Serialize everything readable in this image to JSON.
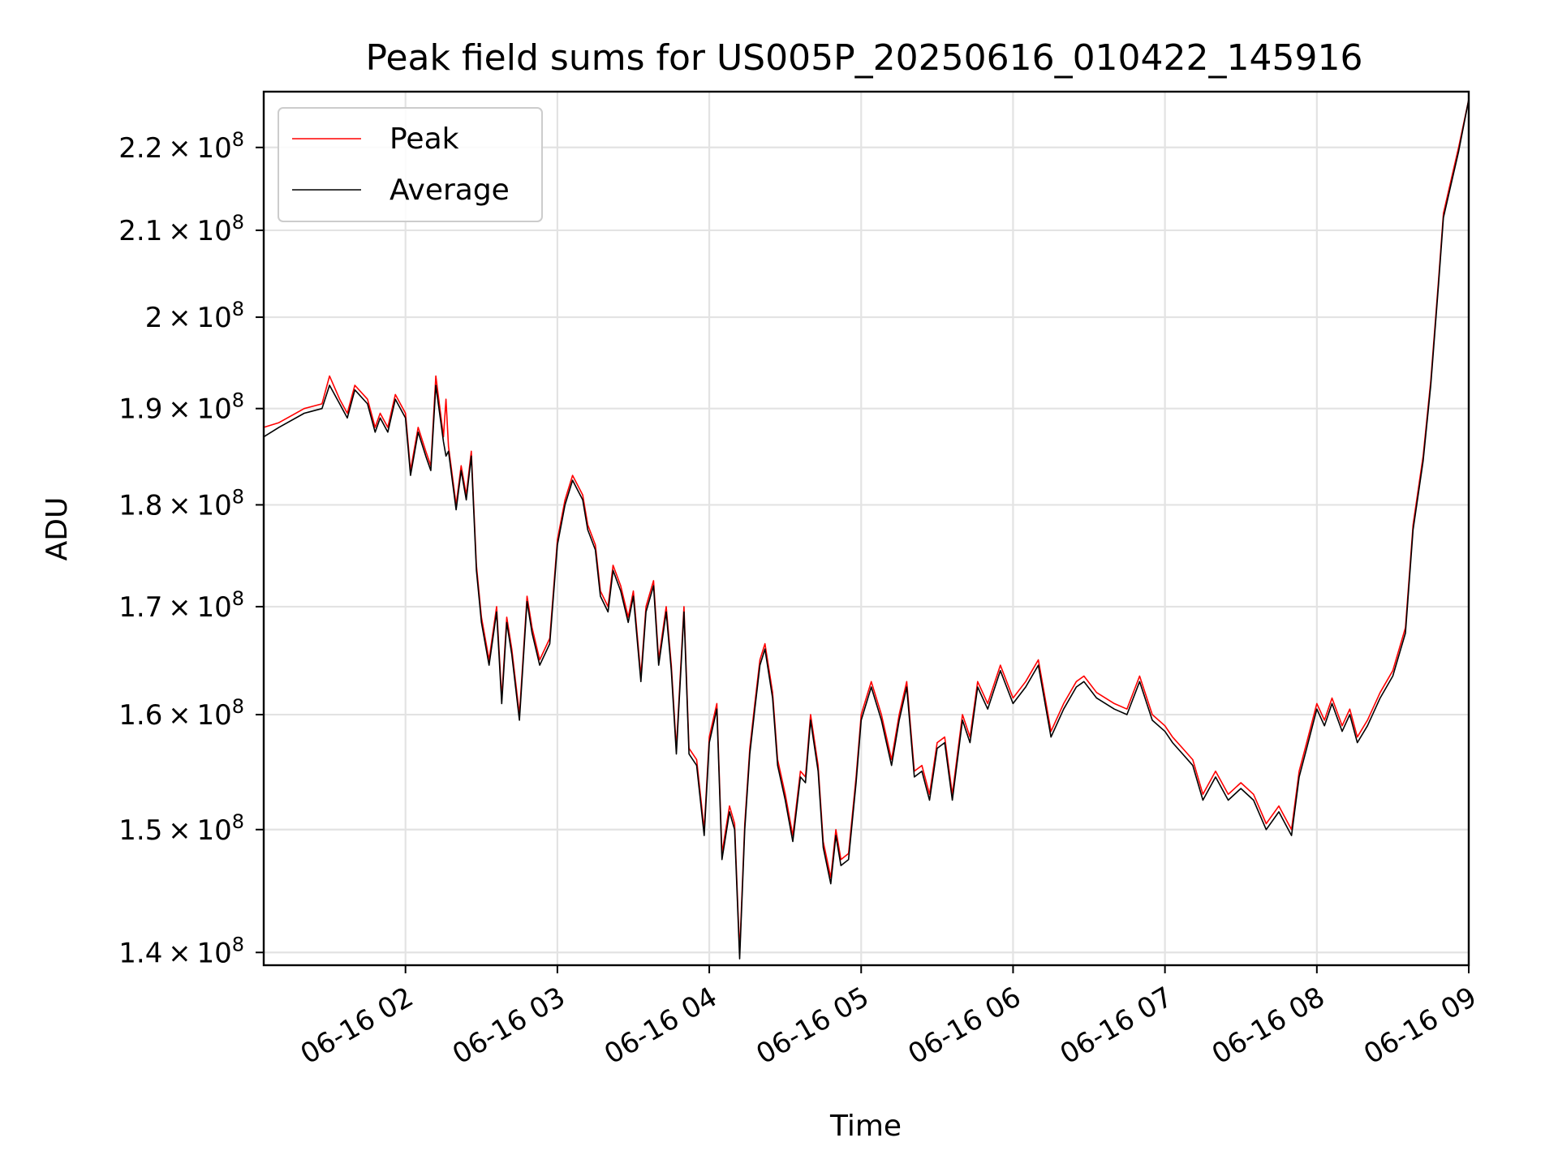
{
  "chart_data": {
    "type": "line",
    "title": "Peak field sums for US005P_20250616_010422_145916",
    "xlabel": "Time",
    "ylabel": "ADU",
    "y_scale": "log",
    "xlim": [
      "2025-06-16 01:04",
      "2025-06-16 09:00"
    ],
    "ylim": [
      139000000,
      227000000
    ],
    "grid": true,
    "legend_position": "top-left",
    "x_ticks": [
      {
        "value": "2025-06-16 02:00",
        "label": "06-16 02"
      },
      {
        "value": "2025-06-16 03:00",
        "label": "06-16 03"
      },
      {
        "value": "2025-06-16 04:00",
        "label": "06-16 04"
      },
      {
        "value": "2025-06-16 05:00",
        "label": "06-16 05"
      },
      {
        "value": "2025-06-16 06:00",
        "label": "06-16 06"
      },
      {
        "value": "2025-06-16 07:00",
        "label": "06-16 07"
      },
      {
        "value": "2025-06-16 08:00",
        "label": "06-16 08"
      },
      {
        "value": "2025-06-16 09:00",
        "label": "06-16 09"
      }
    ],
    "y_ticks": [
      {
        "value": 140000000,
        "mantissa": "1.4",
        "base": "10",
        "exp": "8"
      },
      {
        "value": 150000000,
        "mantissa": "1.5",
        "base": "10",
        "exp": "8"
      },
      {
        "value": 160000000,
        "mantissa": "1.6",
        "base": "10",
        "exp": "8"
      },
      {
        "value": 170000000,
        "mantissa": "1.7",
        "base": "10",
        "exp": "8"
      },
      {
        "value": 180000000,
        "mantissa": "1.8",
        "base": "10",
        "exp": "8"
      },
      {
        "value": 190000000,
        "mantissa": "1.9",
        "base": "10",
        "exp": "8"
      },
      {
        "value": 200000000,
        "mantissa": "2",
        "base": "10",
        "exp": "8"
      },
      {
        "value": 210000000,
        "mantissa": "2.1",
        "base": "10",
        "exp": "8"
      },
      {
        "value": 220000000,
        "mantissa": "2.2",
        "base": "10",
        "exp": "8"
      }
    ],
    "x": [
      "2025-06-16 01:04",
      "2025-06-16 01:10",
      "2025-06-16 01:20",
      "2025-06-16 01:27",
      "2025-06-16 01:30",
      "2025-06-16 01:34",
      "2025-06-16 01:37",
      "2025-06-16 01:40",
      "2025-06-16 01:45",
      "2025-06-16 01:48",
      "2025-06-16 01:50",
      "2025-06-16 01:53",
      "2025-06-16 01:56",
      "2025-06-16 02:00",
      "2025-06-16 02:02",
      "2025-06-16 02:05",
      "2025-06-16 02:08",
      "2025-06-16 02:10",
      "2025-06-16 02:12",
      "2025-06-16 02:15",
      "2025-06-16 02:16",
      "2025-06-16 02:17",
      "2025-06-16 02:20",
      "2025-06-16 02:22",
      "2025-06-16 02:24",
      "2025-06-16 02:26",
      "2025-06-16 02:28",
      "2025-06-16 02:30",
      "2025-06-16 02:33",
      "2025-06-16 02:36",
      "2025-06-16 02:38",
      "2025-06-16 02:40",
      "2025-06-16 02:42",
      "2025-06-16 02:45",
      "2025-06-16 02:48",
      "2025-06-16 02:50",
      "2025-06-16 02:53",
      "2025-06-16 02:57",
      "2025-06-16 03:00",
      "2025-06-16 03:03",
      "2025-06-16 03:06",
      "2025-06-16 03:10",
      "2025-06-16 03:12",
      "2025-06-16 03:15",
      "2025-06-16 03:17",
      "2025-06-16 03:20",
      "2025-06-16 03:22",
      "2025-06-16 03:25",
      "2025-06-16 03:28",
      "2025-06-16 03:30",
      "2025-06-16 03:33",
      "2025-06-16 03:35",
      "2025-06-16 03:38",
      "2025-06-16 03:40",
      "2025-06-16 03:43",
      "2025-06-16 03:45",
      "2025-06-16 03:47",
      "2025-06-16 03:50",
      "2025-06-16 03:52",
      "2025-06-16 03:55",
      "2025-06-16 03:58",
      "2025-06-16 04:00",
      "2025-06-16 04:03",
      "2025-06-16 04:05",
      "2025-06-16 04:08",
      "2025-06-16 04:10",
      "2025-06-16 04:12",
      "2025-06-16 04:14",
      "2025-06-16 04:16",
      "2025-06-16 04:18",
      "2025-06-16 04:20",
      "2025-06-16 04:22",
      "2025-06-16 04:25",
      "2025-06-16 04:27",
      "2025-06-16 04:30",
      "2025-06-16 04:33",
      "2025-06-16 04:36",
      "2025-06-16 04:38",
      "2025-06-16 04:40",
      "2025-06-16 04:43",
      "2025-06-16 04:45",
      "2025-06-16 04:48",
      "2025-06-16 04:50",
      "2025-06-16 04:52",
      "2025-06-16 04:55",
      "2025-06-16 04:58",
      "2025-06-16 05:00",
      "2025-06-16 05:04",
      "2025-06-16 05:08",
      "2025-06-16 05:12",
      "2025-06-16 05:15",
      "2025-06-16 05:18",
      "2025-06-16 05:21",
      "2025-06-16 05:24",
      "2025-06-16 05:27",
      "2025-06-16 05:30",
      "2025-06-16 05:33",
      "2025-06-16 05:36",
      "2025-06-16 05:40",
      "2025-06-16 05:43",
      "2025-06-16 05:46",
      "2025-06-16 05:50",
      "2025-06-16 05:55",
      "2025-06-16 06:00",
      "2025-06-16 06:05",
      "2025-06-16 06:10",
      "2025-06-16 06:15",
      "2025-06-16 06:20",
      "2025-06-16 06:25",
      "2025-06-16 06:28",
      "2025-06-16 06:33",
      "2025-06-16 06:40",
      "2025-06-16 06:45",
      "2025-06-16 06:50",
      "2025-06-16 06:55",
      "2025-06-16 07:00",
      "2025-06-16 07:03",
      "2025-06-16 07:07",
      "2025-06-16 07:11",
      "2025-06-16 07:15",
      "2025-06-16 07:20",
      "2025-06-16 07:25",
      "2025-06-16 07:30",
      "2025-06-16 07:35",
      "2025-06-16 07:40",
      "2025-06-16 07:45",
      "2025-06-16 07:50",
      "2025-06-16 07:53",
      "2025-06-16 07:56",
      "2025-06-16 08:00",
      "2025-06-16 08:03",
      "2025-06-16 08:06",
      "2025-06-16 08:10",
      "2025-06-16 08:13",
      "2025-06-16 08:16",
      "2025-06-16 08:20",
      "2025-06-16 08:25",
      "2025-06-16 08:30",
      "2025-06-16 08:35",
      "2025-06-16 08:38",
      "2025-06-16 08:42",
      "2025-06-16 08:45",
      "2025-06-16 08:48",
      "2025-06-16 08:50",
      "2025-06-16 08:53",
      "2025-06-16 08:56",
      "2025-06-16 09:00"
    ],
    "series": [
      {
        "name": "Peak",
        "color": "#ff0000",
        "values": [
          188000000,
          188500000,
          190000000,
          190500000,
          193500000,
          191000000,
          189500000,
          192500000,
          191000000,
          188000000,
          189500000,
          188000000,
          191500000,
          189500000,
          183500000,
          188000000,
          185500000,
          184000000,
          193500000,
          187000000,
          191000000,
          186000000,
          180000000,
          184000000,
          181000000,
          185500000,
          174000000,
          169000000,
          165000000,
          170000000,
          161500000,
          169000000,
          166000000,
          160000000,
          171000000,
          168000000,
          165000000,
          167000000,
          176500000,
          180500000,
          183000000,
          181000000,
          178000000,
          176000000,
          171500000,
          170000000,
          174000000,
          172000000,
          169000000,
          171500000,
          163500000,
          170000000,
          172500000,
          165000000,
          170000000,
          164500000,
          157000000,
          170000000,
          157000000,
          156000000,
          150000000,
          158000000,
          161000000,
          148000000,
          152000000,
          150500000,
          140000000,
          150500000,
          157000000,
          161000000,
          165000000,
          166500000,
          162000000,
          156000000,
          153000000,
          149500000,
          155000000,
          154500000,
          160000000,
          155500000,
          149000000,
          146000000,
          150000000,
          147500000,
          148000000,
          154500000,
          160000000,
          163000000,
          160000000,
          156000000,
          160000000,
          163000000,
          155000000,
          155500000,
          153000000,
          157500000,
          158000000,
          153000000,
          160000000,
          158000000,
          163000000,
          161000000,
          164500000,
          161500000,
          163000000,
          165000000,
          158500000,
          161000000,
          163000000,
          163500000,
          162000000,
          161000000,
          160500000,
          163500000,
          160000000,
          159000000,
          158000000,
          157000000,
          156000000,
          153000000,
          155000000,
          153000000,
          154000000,
          153000000,
          150500000,
          152000000,
          150000000,
          155000000,
          157500000,
          161000000,
          159500000,
          161500000,
          159000000,
          160500000,
          158000000,
          159500000,
          162000000,
          164000000,
          168000000,
          178000000,
          185000000,
          193000000,
          204000000,
          212000000,
          216000000,
          220000000,
          226000000
        ]
      },
      {
        "name": "Average",
        "color": "#000000",
        "values": [
          187000000,
          188000000,
          189500000,
          190000000,
          192500000,
          190500000,
          189000000,
          192000000,
          190500000,
          187500000,
          189000000,
          187500000,
          191000000,
          189000000,
          183000000,
          187500000,
          185000000,
          183500000,
          192500000,
          186500000,
          185000000,
          185500000,
          179500000,
          183500000,
          180500000,
          185000000,
          173500000,
          168500000,
          164500000,
          169500000,
          161000000,
          168500000,
          165500000,
          159500000,
          170500000,
          167500000,
          164500000,
          166500000,
          176000000,
          180000000,
          182500000,
          180500000,
          177500000,
          175500000,
          171000000,
          169500000,
          173500000,
          171500000,
          168500000,
          171000000,
          163000000,
          169500000,
          172000000,
          164500000,
          169500000,
          164000000,
          156500000,
          169500000,
          156500000,
          155500000,
          149500000,
          157500000,
          160500000,
          147500000,
          151500000,
          150000000,
          139500000,
          150000000,
          156500000,
          160500000,
          164500000,
          166000000,
          161500000,
          155500000,
          152500000,
          149000000,
          154500000,
          154000000,
          159500000,
          155000000,
          148500000,
          145500000,
          149500000,
          147000000,
          147500000,
          154000000,
          159500000,
          162500000,
          159500000,
          155500000,
          159500000,
          162500000,
          154500000,
          155000000,
          152500000,
          157000000,
          157500000,
          152500000,
          159500000,
          157500000,
          162500000,
          160500000,
          164000000,
          161000000,
          162500000,
          164500000,
          158000000,
          160500000,
          162500000,
          163000000,
          161500000,
          160500000,
          160000000,
          163000000,
          159500000,
          158500000,
          157500000,
          156500000,
          155500000,
          152500000,
          154500000,
          152500000,
          153500000,
          152500000,
          150000000,
          151500000,
          149500000,
          154500000,
          157000000,
          160500000,
          159000000,
          161000000,
          158500000,
          160000000,
          157500000,
          159000000,
          161500000,
          163500000,
          167500000,
          177500000,
          184500000,
          192500000,
          203500000,
          211500000,
          215500000,
          219500000,
          226000000
        ]
      }
    ]
  }
}
